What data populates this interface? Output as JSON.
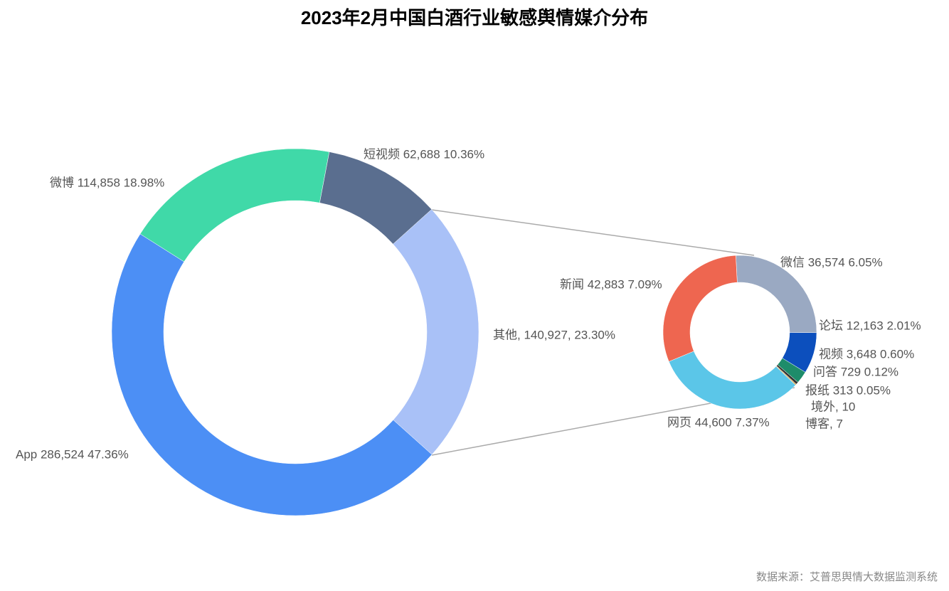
{
  "chart_data": {
    "type": "pie",
    "title": "2023年2月中国白酒行业敏感舆情媒介分布",
    "source": "数据来源：艾普思舆情大数据监测系统",
    "values": [
      140927,
      286524,
      114858,
      62688
    ],
    "value_labels": [
      "其他, 140,927, 23.30%",
      "App 286,524 47.36%",
      "微博 114,858 18.98%",
      "短视频 62,688 10.36%"
    ],
    "colors": [
      "#a9c1f7",
      "#4c8ff5",
      "#40d9a8",
      "#5a6e8f"
    ],
    "sub": {
      "values": [
        36574,
        12163,
        3648,
        729,
        313,
        10,
        7,
        44600,
        42883
      ],
      "value_labels": [
        "微信 36,574 6.05%",
        "论坛 12,163 2.01%",
        "视频 3,648 0.60%",
        "问答 729 0.12%",
        "报纸 313 0.05%",
        "境外, 10",
        "博客, 7",
        "网页 44,600 7.37%",
        "新闻 42,883 7.09%"
      ],
      "colors": [
        "#9aa9c2",
        "#0c4fbd",
        "#1e8c6a",
        "#333333",
        "#d4a03c",
        "#888888",
        "#555555",
        "#5bc6e8",
        "#ee6650"
      ]
    }
  }
}
